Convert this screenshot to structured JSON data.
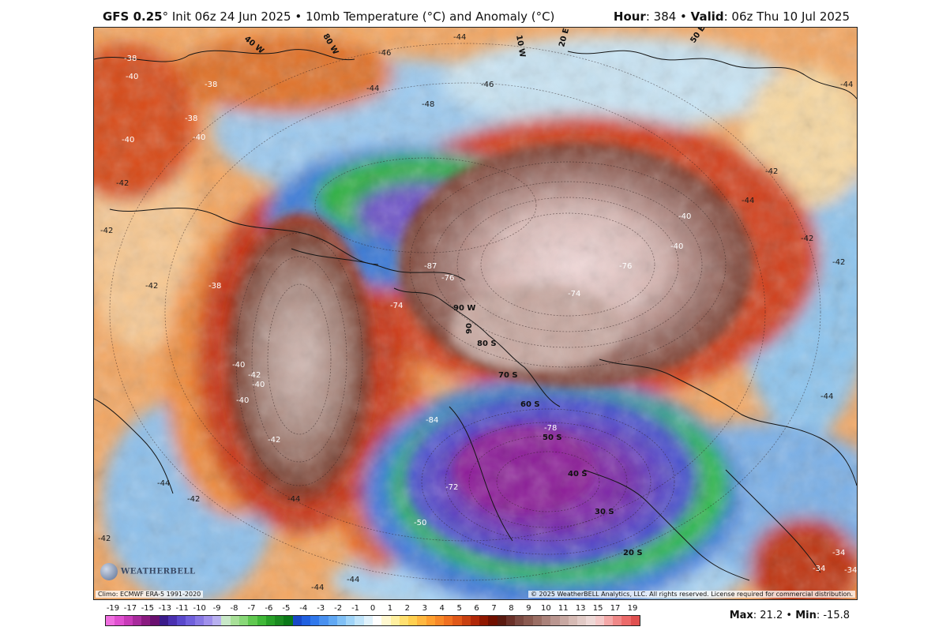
{
  "header": {
    "model": "GFS 0.25",
    "init_text": "° Init 06z 24 Jun 2025 • 10mb Temperature (°C) and Anomaly (°C)",
    "hour_label": "Hour",
    "hour_value": ": 384 • ",
    "valid_label": "Valid",
    "valid_value": ": 06z Thu 10 Jul 2025"
  },
  "map": {
    "projection": "south-polar stereographic",
    "anomaly_colors": {
      "strong_cold": "#8a1aa0",
      "cold": "#5a3fc8",
      "cool": "#2f6fdc",
      "green": "#2eb84a",
      "neutral": "#d8eef6",
      "warm": "#f0a050",
      "hot": "#c83a18",
      "very_hot": "#9a7068",
      "extreme": "#e8d0cc"
    },
    "grid_labels": [
      "90 W",
      "90 S",
      "80 S",
      "70 S",
      "60 S",
      "50 S",
      "40 S",
      "30 S",
      "20 S",
      "90",
      "40 W",
      "80 W",
      "10 W",
      "20 E",
      "50 E"
    ],
    "contour_values": [
      "-38",
      "-40",
      "-38",
      "-38",
      "-42",
      "-44",
      "-44",
      "-46",
      "-46",
      "-48",
      "-40",
      "-40",
      "-42",
      "-44",
      "-44",
      "-42",
      "-40",
      "-40",
      "-42",
      "-42",
      "-40",
      "-38",
      "-40",
      "-40",
      "-42",
      "-42",
      "-42",
      "-44",
      "-42",
      "-44",
      "-76",
      "-74",
      "-87",
      "-76",
      "-74",
      "-72",
      "-84",
      "-78",
      "-50",
      "-34",
      "-34",
      "-34",
      "-44",
      "-44",
      "-44",
      "-42"
    ],
    "climo_note": "Climo: ECMWF ERA-5 1991-2020",
    "copyright": "© 2025 WeatherBELL Analytics, LLC. All rights reserved. License required for commercial distribution.",
    "logo_text": "WEATHERBELL"
  },
  "colorbar": {
    "labels": [
      "-19",
      "-17",
      "-15",
      "-13",
      "-11",
      "-10",
      "-9",
      "-8",
      "-7",
      "-6",
      "-5",
      "-4",
      "-3",
      "-2",
      "-1",
      "0",
      "1",
      "2",
      "3",
      "4",
      "5",
      "6",
      "7",
      "8",
      "9",
      "10",
      "11",
      "13",
      "15",
      "17",
      "19"
    ],
    "colors": [
      "#f06fe0",
      "#e050d0",
      "#c83ab8",
      "#a82a9c",
      "#8a1a80",
      "#6a1070",
      "#3a1a8a",
      "#4a30b0",
      "#5a48cc",
      "#7060dc",
      "#8878e4",
      "#a090ec",
      "#b8b0f0",
      "#c8e8c8",
      "#a8e098",
      "#88d878",
      "#60c850",
      "#40b838",
      "#28a028",
      "#1a8a20",
      "#0a7818",
      "#1848c8",
      "#2060e0",
      "#3078ec",
      "#4890f0",
      "#60a8f4",
      "#80c0f6",
      "#a0d4f8",
      "#c0e4fa",
      "#e0f2fc",
      "#ffffff",
      "#fff8d0",
      "#fff0a0",
      "#ffe070",
      "#ffd050",
      "#ffb840",
      "#ffa030",
      "#f88828",
      "#f07020",
      "#e05818",
      "#c84010",
      "#b02808",
      "#901800",
      "#701000",
      "#5a1a10",
      "#6a3028",
      "#7a4840",
      "#8a5a50",
      "#9a6e64",
      "#aa827a",
      "#ba9690",
      "#c8a8a2",
      "#d6bab4",
      "#e2cac6",
      "#eed8d6",
      "#f4c8c8",
      "#f4a8a8",
      "#f08888",
      "#ec6a6a",
      "#e05050"
    ]
  },
  "stats": {
    "max_label": "Max",
    "max_value": ": 21.2 • ",
    "min_label": "Min",
    "min_value": ": -15.8"
  }
}
